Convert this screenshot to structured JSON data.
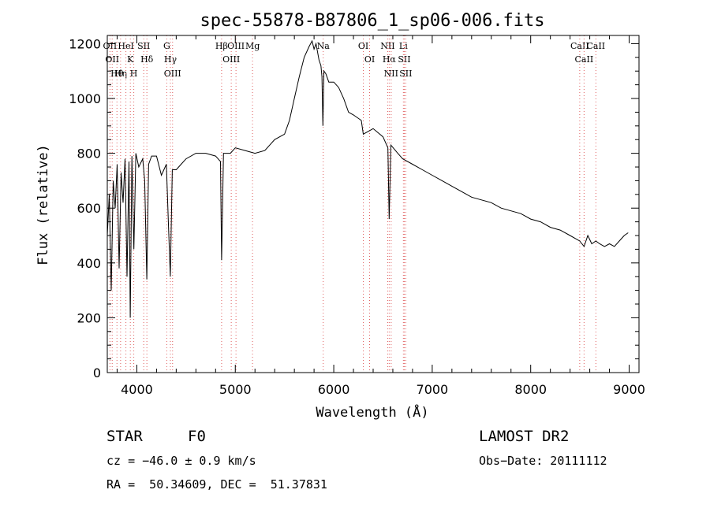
{
  "chart_data": {
    "type": "line",
    "title": "spec-55878-B87806_1_sp06-006.fits",
    "xlabel": "Wavelength (Å)",
    "ylabel": "Flux (relative)",
    "xlim": [
      3700,
      9100
    ],
    "ylim": [
      0,
      1230
    ],
    "xticks": [
      4000,
      5000,
      6000,
      7000,
      8000,
      9000
    ],
    "yticks": [
      0,
      200,
      400,
      600,
      800,
      1000,
      1200
    ],
    "grid": false,
    "series": [
      {
        "x": [
          3700,
          3720,
          3740,
          3760,
          3780,
          3800,
          3820,
          3840,
          3860,
          3880,
          3900,
          3920,
          3933,
          3950,
          3970,
          3990,
          4020,
          4060,
          4080,
          4101,
          4120,
          4150,
          4200,
          4250,
          4300,
          4320,
          4340,
          4360,
          4400,
          4450,
          4500,
          4600,
          4700,
          4800,
          4850,
          4861,
          4880,
          4950,
          5000,
          5100,
          5200,
          5300,
          5400,
          5500,
          5550,
          5600,
          5650,
          5700,
          5750,
          5780,
          5800,
          5820,
          5850,
          5870,
          5880,
          5890,
          5900,
          5920,
          5950,
          6000,
          6050,
          6100,
          6150,
          6200,
          6280,
          6300,
          6400,
          6500,
          6550,
          6563,
          6580,
          6650,
          6700,
          6800,
          6900,
          7000,
          7100,
          7200,
          7300,
          7400,
          7500,
          7600,
          7700,
          7800,
          7900,
          8000,
          8100,
          8200,
          8300,
          8400,
          8498,
          8520,
          8542,
          8580,
          8620,
          8662,
          8700,
          8750,
          8800,
          8850,
          8900,
          8950,
          8990
        ],
        "values": [
          500,
          650,
          300,
          700,
          600,
          760,
          380,
          730,
          620,
          780,
          350,
          770,
          200,
          790,
          450,
          800,
          750,
          780,
          700,
          340,
          760,
          790,
          790,
          720,
          760,
          550,
          350,
          740,
          740,
          760,
          780,
          800,
          800,
          790,
          770,
          410,
          800,
          800,
          820,
          810,
          800,
          810,
          850,
          870,
          920,
          1000,
          1080,
          1150,
          1190,
          1210,
          1180,
          1200,
          1140,
          1120,
          1080,
          900,
          1100,
          1090,
          1060,
          1060,
          1040,
          1000,
          950,
          940,
          920,
          870,
          890,
          860,
          820,
          560,
          830,
          800,
          780,
          760,
          740,
          720,
          700,
          680,
          660,
          640,
          630,
          620,
          600,
          590,
          580,
          560,
          550,
          530,
          520,
          500,
          480,
          470,
          460,
          500,
          470,
          480,
          470,
          460,
          470,
          460,
          480,
          500,
          510
        ]
      }
    ],
    "line_annotations": [
      {
        "wavelength": 3727,
        "label": "OII"
      },
      {
        "wavelength": 3750,
        "label": "OII"
      },
      {
        "wavelength": 3798,
        "label": "Hθ"
      },
      {
        "wavelength": 3835,
        "label": "Hη"
      },
      {
        "wavelength": 3889,
        "label": "HeI"
      },
      {
        "wavelength": 3934,
        "label": "K"
      },
      {
        "wavelength": 3969,
        "label": "H"
      },
      {
        "wavelength": 4070,
        "label": "SII"
      },
      {
        "wavelength": 4102,
        "label": "Hδ"
      },
      {
        "wavelength": 4304,
        "label": "G"
      },
      {
        "wavelength": 4341,
        "label": "Hγ"
      },
      {
        "wavelength": 4363,
        "label": "OIII"
      },
      {
        "wavelength": 4861,
        "label": "Hβ"
      },
      {
        "wavelength": 4959,
        "label": "OIII"
      },
      {
        "wavelength": 5007,
        "label": "OIII"
      },
      {
        "wavelength": 5175,
        "label": "Mg"
      },
      {
        "wavelength": 5893,
        "label": "Na"
      },
      {
        "wavelength": 6300,
        "label": "OI"
      },
      {
        "wavelength": 6364,
        "label": "OI"
      },
      {
        "wavelength": 6548,
        "label": "NII"
      },
      {
        "wavelength": 6563,
        "label": "Hα"
      },
      {
        "wavelength": 6583,
        "label": "NII"
      },
      {
        "wavelength": 6707,
        "label": "Li"
      },
      {
        "wavelength": 6716,
        "label": "SII"
      },
      {
        "wavelength": 6731,
        "label": "SII"
      },
      {
        "wavelength": 8498,
        "label": "CaII"
      },
      {
        "wavelength": 8542,
        "label": "CaII"
      },
      {
        "wavelength": 8662,
        "label": "CaII"
      }
    ],
    "line_color": "#000000",
    "annotation_color": "#e06060"
  },
  "info": {
    "object_class": "STAR",
    "subclass": "F0",
    "survey": "LAMOST DR2",
    "velocity": "cz = −46.0 ± 0.9 km/s",
    "obs_date": "Obs−Date: 20111112",
    "coords": "RA =  50.34609, DEC =  51.37831"
  }
}
